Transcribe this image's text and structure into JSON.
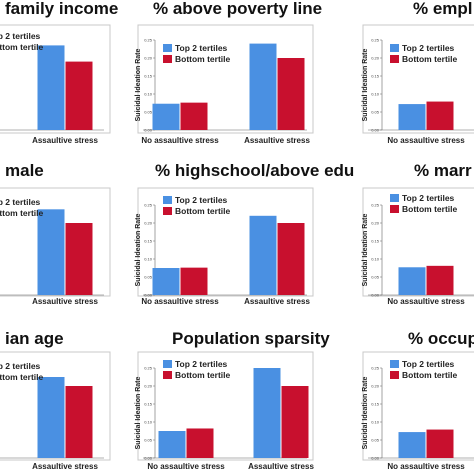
{
  "legend": [
    "Top 2 tertiles",
    "Bottom tertile"
  ],
  "colors": {
    "top": "#4a90e2",
    "bottom": "#c8102e"
  },
  "chart_data": [
    {
      "type": "bar",
      "title": "family income",
      "categories": [
        "Assaultive stress"
      ],
      "ylabel": "",
      "ylim": [
        0,
        0.25
      ],
      "series": [
        {
          "name": "Top 2 tertiles",
          "values": [
            0.235
          ]
        },
        {
          "name": "Bottom tertile",
          "values": [
            0.19
          ]
        }
      ]
    },
    {
      "type": "bar",
      "title": "% above poverty line",
      "categories": [
        "No assaultive stress",
        "Assaultive stress"
      ],
      "ylabel": "Suicidal Ideation Rate",
      "yticks": [
        "0.00",
        "0.05",
        "0.10",
        "0.15",
        "0.20",
        "0.25"
      ],
      "ylim": [
        0,
        0.25
      ],
      "series": [
        {
          "name": "Top 2 tertiles",
          "values": [
            0.073,
            0.24
          ]
        },
        {
          "name": "Bottom tertile",
          "values": [
            0.076,
            0.2
          ]
        }
      ]
    },
    {
      "type": "bar",
      "title": "% empl",
      "categories": [
        "No assaultive stress"
      ],
      "ylabel": "Suicidal Ideation Rate",
      "yticks": [
        "0.00",
        "0.05",
        "0.10",
        "0.15",
        "0.20",
        "0.25"
      ],
      "ylim": [
        0,
        0.25
      ],
      "series": [
        {
          "name": "Top 2 tertiles",
          "values": [
            0.072
          ]
        },
        {
          "name": "Bottom tertile",
          "values": [
            0.079
          ]
        }
      ]
    },
    {
      "type": "bar",
      "title": "male",
      "categories": [
        "Assaultive stress"
      ],
      "ylabel": "",
      "ylim": [
        0,
        0.25
      ],
      "series": [
        {
          "name": "Top 2 tertiles",
          "values": [
            0.238
          ]
        },
        {
          "name": "Bottom tertile",
          "values": [
            0.2
          ]
        }
      ]
    },
    {
      "type": "bar",
      "title": "% highschool/above edu",
      "categories": [
        "No assaultive stress",
        "Assaultive stress"
      ],
      "ylabel": "Suicidal Ideation Rate",
      "yticks": [
        "0.00",
        "0.05",
        "0.10",
        "0.15",
        "0.20",
        "0.25"
      ],
      "ylim": [
        0,
        0.25
      ],
      "series": [
        {
          "name": "Top 2 tertiles",
          "values": [
            0.075,
            0.22
          ]
        },
        {
          "name": "Bottom tertile",
          "values": [
            0.076,
            0.2
          ]
        }
      ]
    },
    {
      "type": "bar",
      "title": "% marr",
      "categories": [
        "No assaultive stress"
      ],
      "ylabel": "Suicidal Ideation Rate",
      "yticks": [
        "0.00",
        "0.05",
        "0.10",
        "0.15",
        "0.20",
        "0.25"
      ],
      "ylim": [
        0,
        0.25
      ],
      "series": [
        {
          "name": "Top 2 tertiles",
          "values": [
            0.077
          ]
        },
        {
          "name": "Bottom tertile",
          "values": [
            0.081
          ]
        }
      ]
    },
    {
      "type": "bar",
      "title": "ian age",
      "categories": [
        "Assaultive stress"
      ],
      "ylabel": "",
      "ylim": [
        0,
        0.25
      ],
      "series": [
        {
          "name": "Top 2 tertiles",
          "values": [
            0.225
          ]
        },
        {
          "name": "Bottom tertile",
          "values": [
            0.2
          ]
        }
      ]
    },
    {
      "type": "bar",
      "title": "Population sparsity",
      "categories": [
        "No assaultive stress",
        "Assaultive stress"
      ],
      "ylabel": "Suicidal Ideation Rate",
      "yticks": [
        "0.00",
        "0.05",
        "0.10",
        "0.15",
        "0.20",
        "0.25"
      ],
      "ylim": [
        0,
        0.25
      ],
      "series": [
        {
          "name": "Top 2 tertiles",
          "values": [
            0.075,
            0.25
          ]
        },
        {
          "name": "Bottom tertile",
          "values": [
            0.082,
            0.2
          ]
        }
      ]
    },
    {
      "type": "bar",
      "title": "% occupie",
      "categories": [
        "No assaultive stress"
      ],
      "ylabel": "Suicidal Ideation Rate",
      "yticks": [
        "0.00",
        "0.05",
        "0.10",
        "0.15",
        "0.20",
        "0.25"
      ],
      "ylim": [
        0,
        0.25
      ],
      "series": [
        {
          "name": "Top 2 tertiles",
          "values": [
            0.072
          ]
        },
        {
          "name": "Bottom tertile",
          "values": [
            0.079
          ]
        }
      ]
    }
  ]
}
